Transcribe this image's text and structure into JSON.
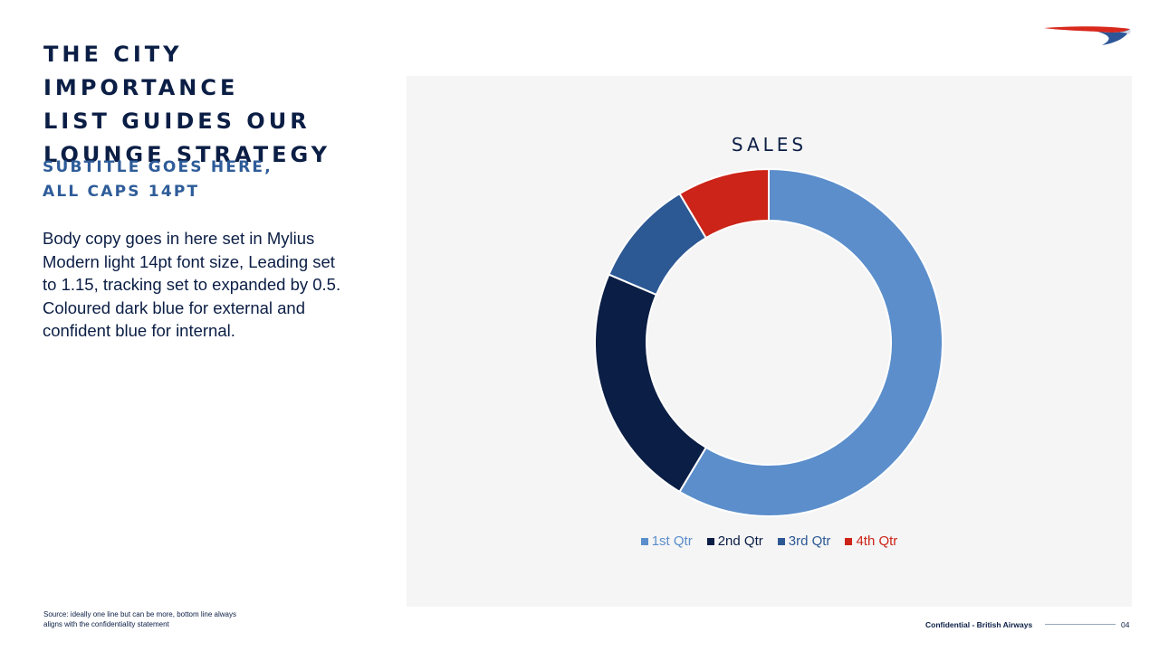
{
  "slide": {
    "title_lines": [
      "THE CITY IMPORTANCE",
      "LIST GUIDES OUR",
      "LOUNGE STRATEGY"
    ],
    "subtitle_lines": [
      "SUBTITLE GOES HERE,",
      "ALL CAPS 14PT"
    ],
    "body_lines": [
      "Body copy goes in here set in Mylius",
      "Modern light 14pt font size, Leading set",
      "to 1.15, tracking set to expanded by 0.5.",
      "Coloured dark blue for external and",
      "confident blue for internal."
    ],
    "source_lines": [
      "Source: ideally one line but can be more, bottom line always",
      "aligns with the confidentiality statement"
    ],
    "footer": {
      "confidential": "Confidential - British Airways",
      "page_number": "04"
    },
    "logo": "british-airways-speedmarque-logo"
  },
  "colors": {
    "dark_blue": "#0b1e45",
    "confident_blue": "#2e5c99",
    "panel_bg": "#f5f5f5",
    "red": "#cc2418"
  },
  "chart_data": {
    "type": "pie",
    "variant": "donut",
    "title": "SALES",
    "categories": [
      "1st Qtr",
      "2nd Qtr",
      "3rd Qtr",
      "4th Qtr"
    ],
    "values": [
      8.2,
      3.2,
      1.4,
      1.2
    ],
    "colors": [
      "#5b8ecb",
      "#0b1e45",
      "#2c5894",
      "#cc2418"
    ],
    "legend": "bottom"
  }
}
